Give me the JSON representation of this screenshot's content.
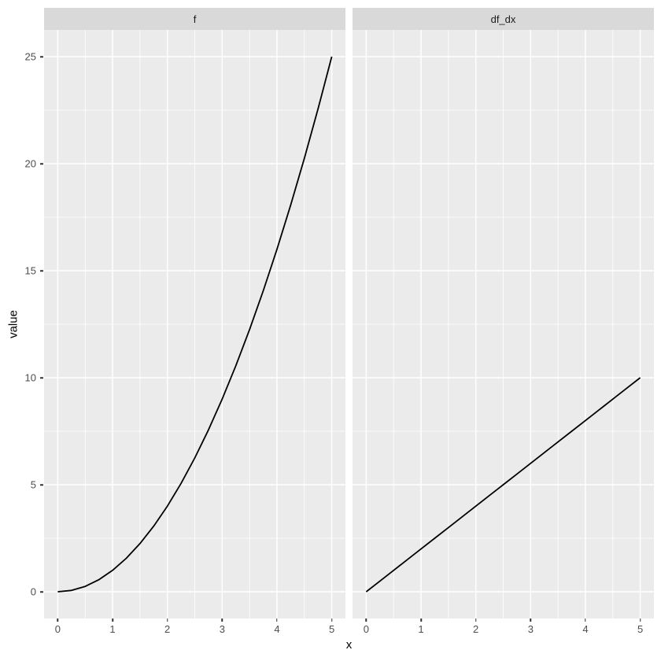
{
  "chart_data": {
    "type": "line",
    "title": "",
    "xlabel": "x",
    "ylabel": "value",
    "legend": "none",
    "grid": "major and minor white gridlines on gray panel",
    "x_ticks": [
      0,
      1,
      2,
      3,
      4,
      5
    ],
    "y_ticks": [
      0,
      5,
      10,
      15,
      20,
      25
    ],
    "xlim": [
      -0.25,
      5.25
    ],
    "ylim": [
      -1.25,
      26.25
    ],
    "x": [
      0,
      0.25,
      0.5,
      0.75,
      1,
      1.25,
      1.5,
      1.75,
      2,
      2.25,
      2.5,
      2.75,
      3,
      3.25,
      3.5,
      3.75,
      4,
      4.25,
      4.5,
      4.75,
      5
    ],
    "facets": [
      {
        "label": "f",
        "values": [
          0,
          0.0625,
          0.25,
          0.5625,
          1,
          1.5625,
          2.25,
          3.0625,
          4,
          5.0625,
          6.25,
          7.5625,
          9,
          10.5625,
          12.25,
          14.0625,
          16,
          18.0625,
          20.25,
          22.5625,
          25
        ]
      },
      {
        "label": "df_dx",
        "values": [
          0,
          0.5,
          1,
          1.5,
          2,
          2.5,
          3,
          3.5,
          4,
          4.5,
          5,
          5.5,
          6,
          6.5,
          7,
          7.5,
          8,
          8.5,
          9,
          9.5,
          10
        ]
      }
    ]
  },
  "style": {
    "background": "#FFFFFF",
    "panel_bg": "#EBEBEB",
    "strip_bg": "#D9D9D9",
    "strip_text_color": "#1A1A1A",
    "grid_color": "#FFFFFF",
    "line_color": "#000000",
    "tick_mark_color": "#333333",
    "tick_label_color": "#4D4D4D",
    "axis_title_color": "#000000"
  }
}
